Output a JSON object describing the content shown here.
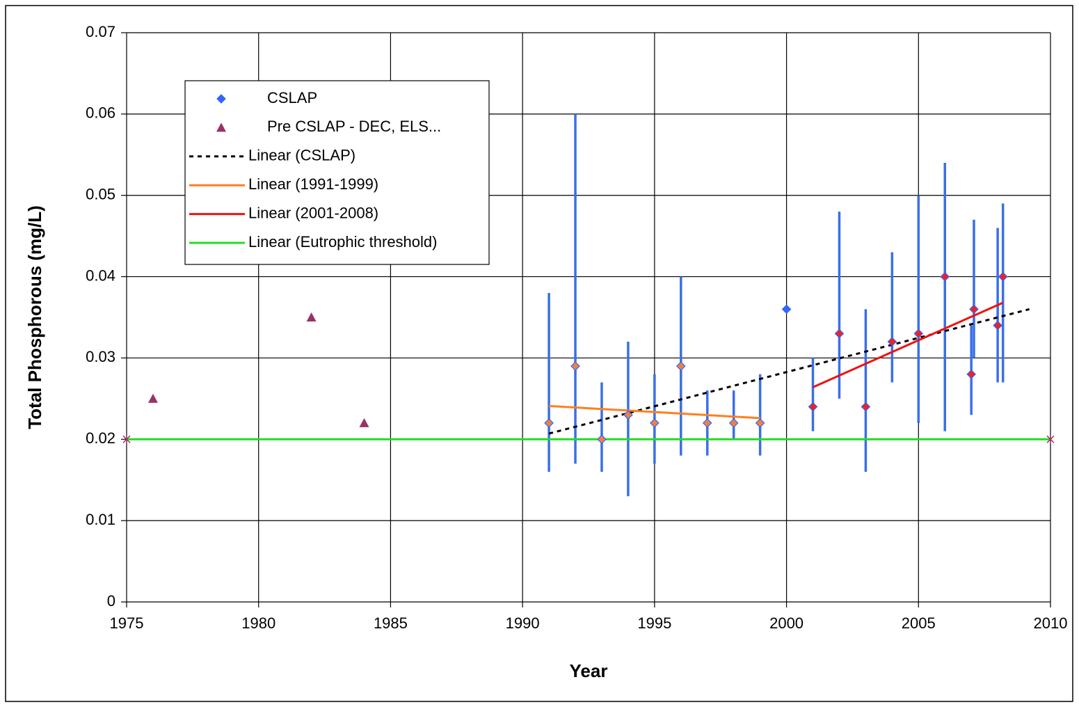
{
  "chart_data": {
    "type": "scatter",
    "x_label": "Year",
    "y_label": "Total Phosphorous (mg/L)",
    "xlim": [
      1975,
      2010
    ],
    "xticks": [
      1975,
      1980,
      1985,
      1990,
      1995,
      2000,
      2005,
      2010
    ],
    "ylim": [
      0,
      0.07
    ],
    "yticks": [
      0,
      0.01,
      0.02,
      0.03,
      0.04,
      0.05,
      0.06,
      0.07
    ],
    "grid": true,
    "legend": "upper-left",
    "series": [
      {
        "name": "CSLAP",
        "marker": "diamond",
        "color": "#3366ff",
        "error_color": "#3a6fe6",
        "x": [
          1991,
          1992,
          1993,
          1994,
          1995,
          1996,
          1997,
          1998,
          1999,
          2000,
          2001,
          2002,
          2003,
          2004,
          2005,
          2006,
          2007,
          2007.1,
          2008,
          2008.2
        ],
        "values": [
          0.022,
          0.029,
          0.02,
          0.023,
          0.022,
          0.029,
          0.022,
          0.022,
          0.022,
          0.036,
          0.024,
          0.033,
          0.024,
          0.032,
          0.033,
          0.04,
          0.028,
          0.036,
          0.034,
          0.04
        ],
        "lows": [
          0.016,
          0.017,
          0.016,
          0.013,
          0.017,
          0.018,
          0.018,
          0.02,
          0.018,
          null,
          0.021,
          0.025,
          0.016,
          0.027,
          0.022,
          0.021,
          0.023,
          0.03,
          0.027,
          0.027
        ],
        "highs": [
          0.038,
          0.06,
          0.027,
          0.032,
          0.028,
          0.04,
          0.026,
          0.026,
          0.028,
          null,
          0.03,
          0.048,
          0.036,
          0.043,
          0.05,
          0.054,
          0.034,
          0.047,
          0.046,
          0.049
        ],
        "fills": [
          "#f08040",
          "#f08040",
          "#f08040",
          "#f08040",
          "#f08040",
          "#f08040",
          "#f08040",
          "#f08040",
          "#f08040",
          "#3366ff",
          "#ee2222",
          "#ee2222",
          "#ee2222",
          "#ee2222",
          "#ee2222",
          "#ee2222",
          "#ee2222",
          "#ee2222",
          "#ee2222",
          "#ee2222"
        ]
      },
      {
        "name": "Pre CSLAP - DEC, ELS...",
        "marker": "triangle",
        "color": "#993366",
        "x": [
          1976,
          1982,
          1984
        ],
        "values": [
          0.025,
          0.035,
          0.022
        ]
      },
      {
        "name": "Linear (CSLAP)",
        "line": true,
        "dash": true,
        "color": "#000000",
        "x": [
          1991,
          2009.2
        ],
        "values": [
          0.0207,
          0.036
        ]
      },
      {
        "name": "Linear (1991-1999)",
        "line": true,
        "color": "#ff7f1e",
        "x": [
          1991,
          1999
        ],
        "values": [
          0.0241,
          0.0226
        ]
      },
      {
        "name": "Linear (2001-2008)",
        "line": true,
        "color": "#ee1111",
        "x": [
          2001,
          2008.2
        ],
        "values": [
          0.0264,
          0.0368
        ]
      },
      {
        "name": "Linear (Eutrophic threshold)",
        "line": true,
        "end_marker": "star",
        "color": "#22dd22",
        "x": [
          1975,
          2010
        ],
        "values": [
          0.02,
          0.02
        ]
      }
    ]
  }
}
